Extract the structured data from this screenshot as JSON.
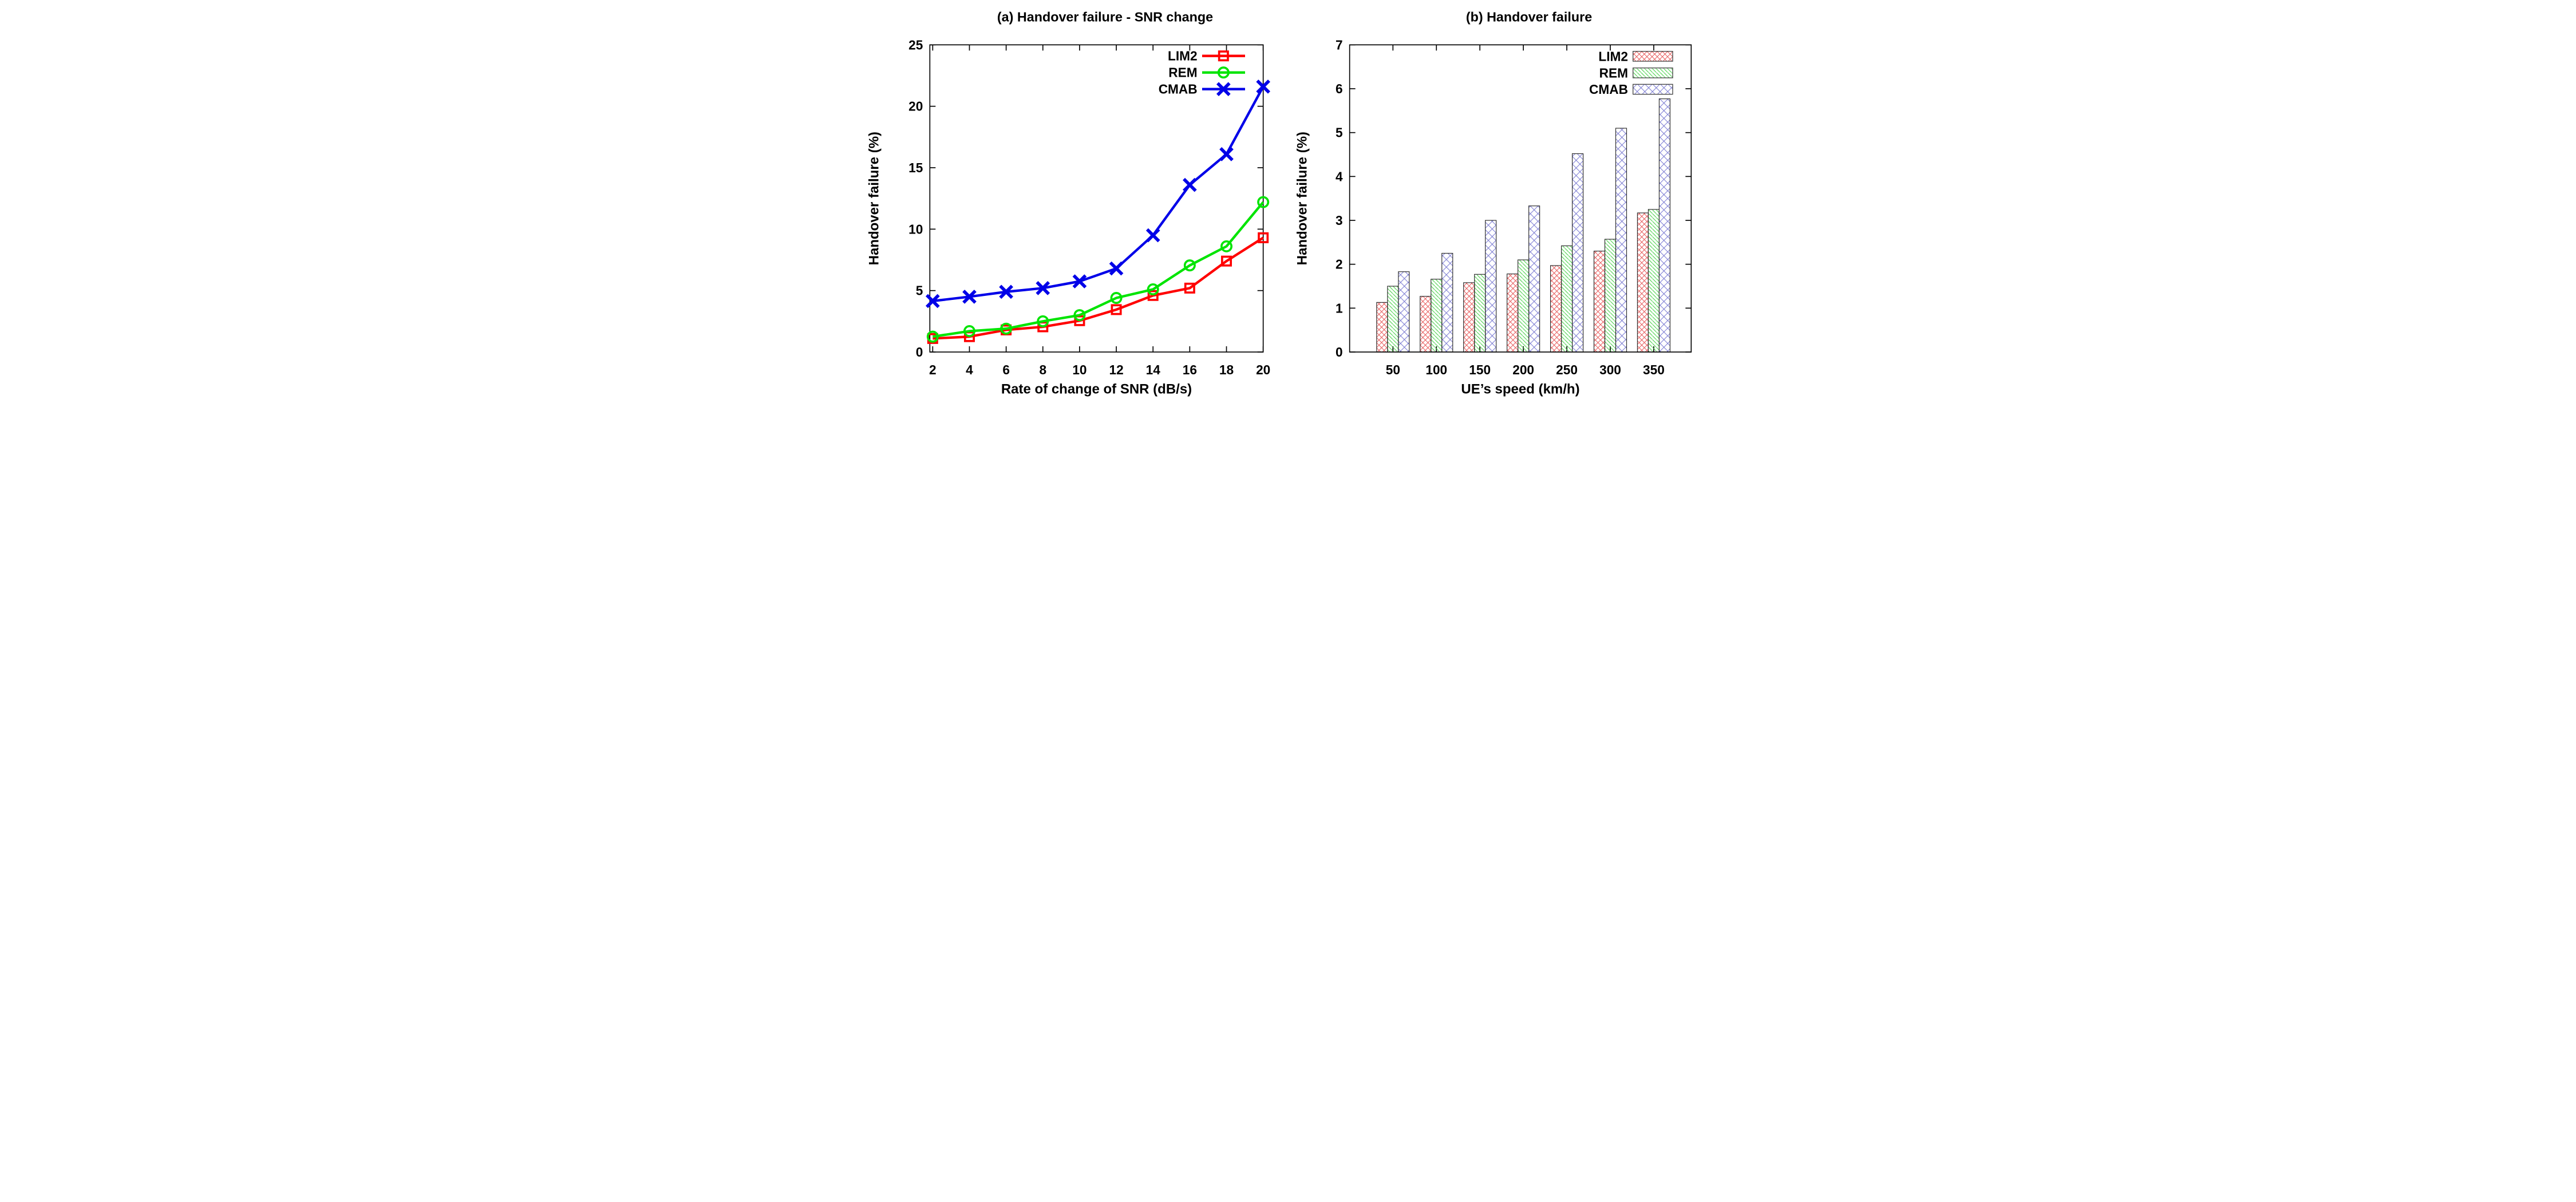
{
  "page": {
    "background": "#ffffff"
  },
  "chart_data": [
    {
      "id": "a",
      "type": "line",
      "title": "(a) Handover failure - SNR change",
      "xlabel": "Rate of change of SNR (dB/s)",
      "ylabel": "Handover failure (%)",
      "x": [
        2,
        4,
        6,
        8,
        10,
        12,
        14,
        16,
        18,
        20
      ],
      "xticks": [
        2,
        4,
        6,
        8,
        10,
        12,
        14,
        16,
        18,
        20
      ],
      "yticks": [
        0,
        5,
        10,
        15,
        20,
        25
      ],
      "xlim": [
        1.85,
        20
      ],
      "ylim": [
        0,
        25
      ],
      "grid": false,
      "legend_position": "top-right-inside",
      "legend_order": [
        "LIM2",
        "REM",
        "CMAB"
      ],
      "series": [
        {
          "name": "LIM2",
          "color": "#ff0000",
          "marker": "square",
          "values": [
            1.1,
            1.25,
            1.8,
            2.05,
            2.55,
            3.45,
            4.6,
            5.2,
            7.4,
            9.3
          ]
        },
        {
          "name": "REM",
          "color": "#00e400",
          "marker": "circle",
          "values": [
            1.25,
            1.7,
            1.9,
            2.5,
            3.0,
            4.4,
            5.1,
            7.05,
            8.6,
            12.2
          ]
        },
        {
          "name": "CMAB",
          "color": "#0000e8",
          "marker": "x",
          "values": [
            4.15,
            4.5,
            4.9,
            5.2,
            5.75,
            6.8,
            9.5,
            13.6,
            16.1,
            21.6
          ]
        }
      ]
    },
    {
      "id": "b",
      "type": "bar",
      "title": "(b) Handover failure",
      "xlabel": "UE’s speed (km/h)",
      "ylabel": "Handover failure (%)",
      "categories": [
        "50",
        "100",
        "150",
        "200",
        "250",
        "300",
        "350"
      ],
      "yticks": [
        0,
        1,
        2,
        3,
        4,
        5,
        6,
        7
      ],
      "ylim": [
        0,
        7
      ],
      "grid": false,
      "legend_position": "top-right-inside",
      "legend_order": [
        "LIM2",
        "REM",
        "CMAB"
      ],
      "bar_outline": "#2b2b2b",
      "series": [
        {
          "name": "LIM2",
          "hatch": "cross-fine",
          "color": "#e86060",
          "values": [
            1.13,
            1.27,
            1.58,
            1.78,
            1.97,
            2.3,
            3.17
          ]
        },
        {
          "name": "REM",
          "hatch": "diagonal",
          "color": "#3ecf3e",
          "values": [
            1.5,
            1.66,
            1.77,
            2.1,
            2.42,
            2.57,
            3.25
          ]
        },
        {
          "name": "CMAB",
          "hatch": "cross-diamond",
          "color": "#7a7ad2",
          "values": [
            1.83,
            2.25,
            3.0,
            3.33,
            4.52,
            5.1,
            5.77
          ]
        }
      ]
    }
  ]
}
